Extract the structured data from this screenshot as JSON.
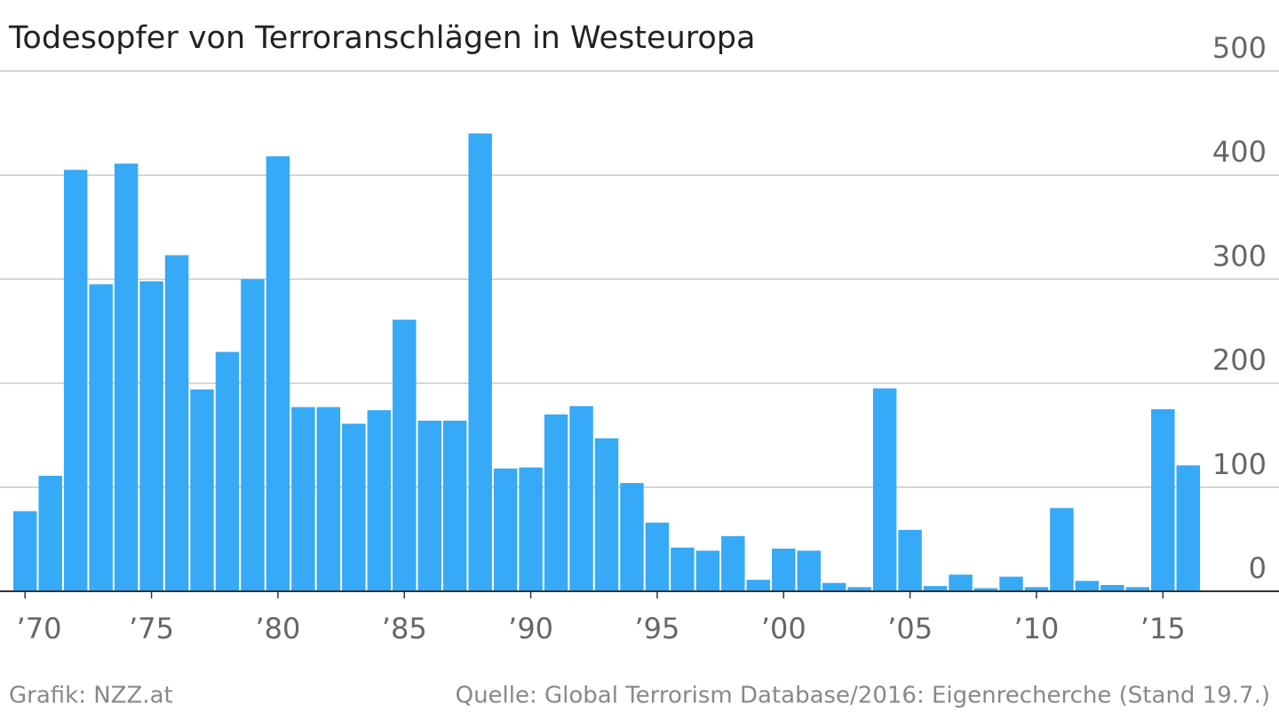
{
  "chart_data": {
    "type": "bar",
    "title": "Todesopfer von Terroranschlägen in Westeuropa",
    "credit": "Grafik: NZZ.at",
    "source": "Quelle: Global Terrorism Database/2016: Eigenrecherche (Stand 19.7.)",
    "categories": [
      "’70",
      null,
      null,
      null,
      null,
      "’75",
      null,
      null,
      null,
      null,
      "’80",
      null,
      null,
      null,
      null,
      "’85",
      null,
      null,
      null,
      null,
      "’90",
      null,
      null,
      null,
      null,
      "’95",
      null,
      null,
      null,
      null,
      "’00",
      null,
      null,
      null,
      null,
      "’05",
      null,
      null,
      null,
      null,
      "’10",
      null,
      null,
      null,
      null,
      "’15",
      null
    ],
    "values": [
      77,
      111,
      405,
      295,
      411,
      298,
      323,
      194,
      230,
      300,
      418,
      177,
      177,
      161,
      174,
      261,
      164,
      164,
      440,
      118,
      119,
      170,
      178,
      147,
      104,
      66,
      42,
      39,
      53,
      11,
      41,
      39,
      8,
      4,
      195,
      59,
      5,
      16,
      3,
      14,
      4,
      80,
      10,
      6,
      4,
      175,
      121
    ],
    "color": "#36a9f7",
    "ylim": [
      0,
      500
    ],
    "yticks": [
      0,
      100,
      200,
      300,
      400,
      500
    ],
    "grid": true
  }
}
